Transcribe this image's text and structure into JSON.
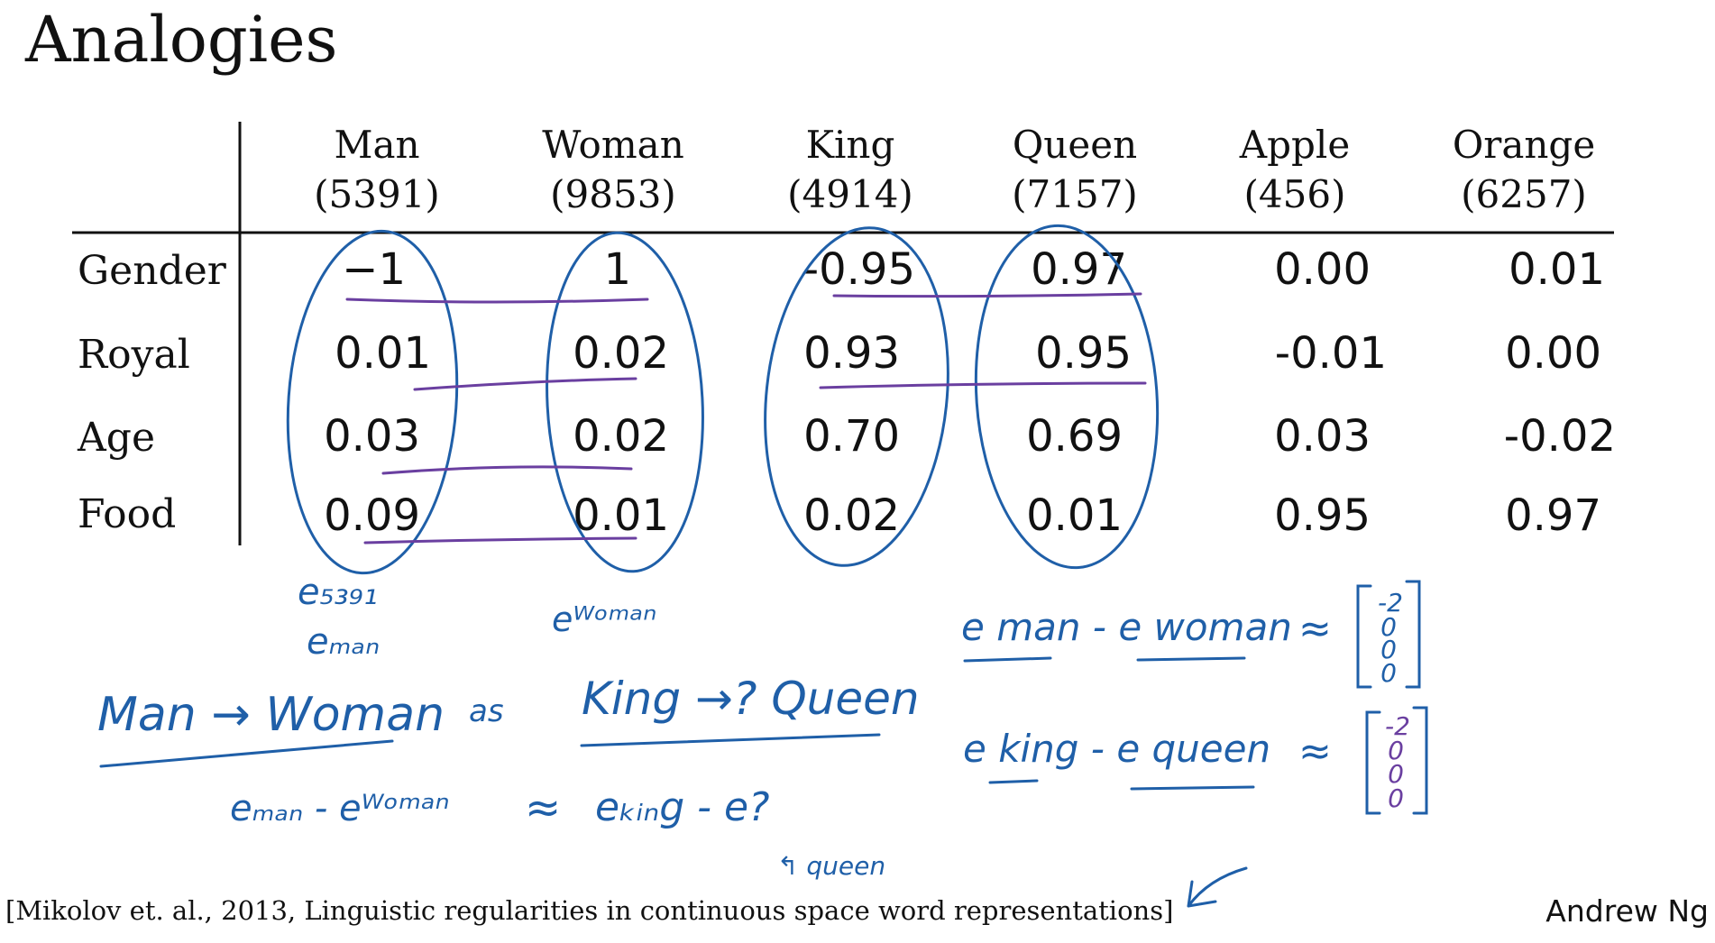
{
  "slide": {
    "title": "Analogies",
    "citation": "[Mikolov et. al., 2013, Linguistic regularities in continuous space word representations]",
    "author": "Andrew Ng"
  },
  "table": {
    "columns": [
      {
        "word": "Man",
        "index": "(5391)"
      },
      {
        "word": "Woman",
        "index": "(9853)"
      },
      {
        "word": "King",
        "index": "(4914)"
      },
      {
        "word": "Queen",
        "index": "(7157)"
      },
      {
        "word": "Apple",
        "index": "(456)"
      },
      {
        "word": "Orange",
        "index": "(6257)"
      }
    ],
    "rows": [
      {
        "feature": "Gender",
        "values": [
          "−1",
          "1",
          "-0.95",
          "0.97",
          "0.00",
          "0.01"
        ]
      },
      {
        "feature": "Royal",
        "values": [
          "0.01",
          "0.02",
          "0.93",
          "0.95",
          "-0.01",
          "0.00"
        ]
      },
      {
        "feature": "Age",
        "values": [
          "0.03",
          "0.02",
          "0.70",
          "0.69",
          "0.03",
          "-0.02"
        ]
      },
      {
        "feature": "Food",
        "values": [
          "0.09",
          "0.01",
          "0.02",
          "0.01",
          "0.95",
          "0.97"
        ]
      }
    ]
  },
  "handwriting": {
    "e5391": "e₅₃₉₁",
    "eman": "eₘₐₙ",
    "ewoman": "eᵂᵒᵐᵃⁿ",
    "analogy_left": "Man → Woman",
    "analogy_as": "as",
    "analogy_right": "King →? Queen",
    "eq_left": "eₘₐₙ - eᵂᵒᵐᵃⁿ",
    "approx": "≈",
    "eq_right": "eₖᵢₙg - e?",
    "queen_note": "↰ queen",
    "diff1_lhs": "e man  -  e woman",
    "diff2_lhs": "e king  -  e queen",
    "vector1": [
      "-2",
      "0",
      "0",
      "0"
    ],
    "vector2": [
      "-2",
      "0",
      "0",
      "0"
    ]
  },
  "colors": {
    "ink_blue": "#1f5fa8",
    "ink_purple": "#6a3fa0",
    "text": "#111111"
  }
}
